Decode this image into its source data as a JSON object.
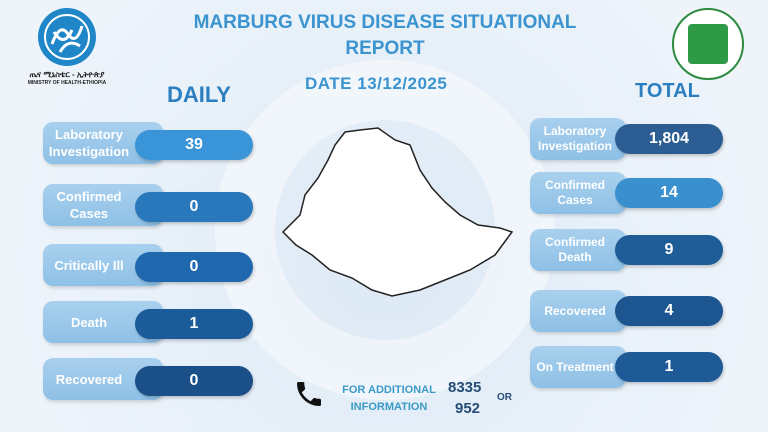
{
  "title": "MARBURG VIRUS DISEASE SITUATIONAL REPORT",
  "date_label": "DATE 13/12/2025",
  "logos": {
    "left_amharic": "ጤና ሚኒስቴር - ኢትዮጵያ",
    "left_english": "MINISTRY OF HEALTH-ETHIOPIA",
    "right": "Ethiopian Public Health Institute"
  },
  "daily": {
    "heading": "DAILY",
    "items": [
      {
        "label": "Laboratory Investigation",
        "value": "39",
        "color": "#3a95d8"
      },
      {
        "label": "Confirmed Cases",
        "value": "0",
        "color": "#2a78bc"
      },
      {
        "label": "Critically Ill",
        "value": "0",
        "color": "#2068ae"
      },
      {
        "label": "Death",
        "value": "1",
        "color": "#1c5b9a"
      },
      {
        "label": "Recovered",
        "value": "0",
        "color": "#1a4f88"
      }
    ]
  },
  "total": {
    "heading": "TOTAL",
    "items": [
      {
        "label": "Laboratory Investigation",
        "value": "1,804",
        "color": "#2b5d92"
      },
      {
        "label": "Confirmed Cases",
        "value": "14",
        "color": "#3a90cf"
      },
      {
        "label": "Confirmed Death",
        "value": "9",
        "color": "#1f5d99"
      },
      {
        "label": "Recovered",
        "value": "4",
        "color": "#1d5590"
      },
      {
        "label": "On Treatment",
        "value": "1",
        "color": "#1e5a96"
      }
    ]
  },
  "contact": {
    "text": "FOR ADDITIONAL INFORMATION",
    "number1": "8335",
    "number2": "952",
    "or": "OR",
    "icon": "phone-icon"
  }
}
